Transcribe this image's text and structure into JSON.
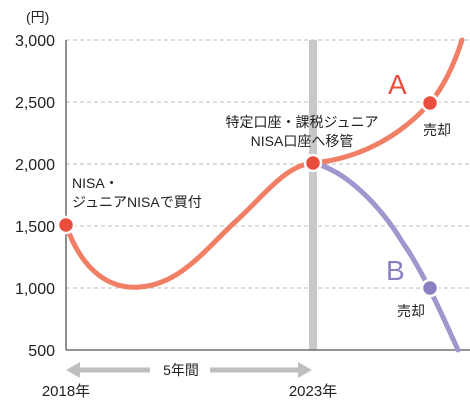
{
  "chart_data": {
    "type": "line",
    "unit_label": "(円)",
    "y_ticks": [
      "3,000",
      "2,500",
      "2,000",
      "1,500",
      "1,000",
      "500"
    ],
    "y_tick_values": [
      3000,
      2500,
      2000,
      1500,
      1000,
      500
    ],
    "ylim": [
      500,
      3000
    ],
    "x_labels": {
      "start": "2018年",
      "end": "2023年"
    },
    "duration_label": "5年間",
    "grid": true,
    "series": [
      {
        "name": "A",
        "color": "#f07f66",
        "sell_value": 2500
      },
      {
        "name": "B",
        "color": "#a196cd",
        "sell_value": 1000
      }
    ],
    "key_points": {
      "start_value": 1500,
      "transfer_value": 2000
    },
    "annotations": {
      "start": "NISA・ ジュニアNISAで買付",
      "transfer_line1": "特定口座・課税ジュニア",
      "transfer_line2": "NISA口座へ移管",
      "sell_a": "売却",
      "sell_b": "売却"
    },
    "colors": {
      "line_a": "#f07f66",
      "line_b": "#a196cd",
      "marker_a": "#e94e3c",
      "marker_b": "#8a7fc0",
      "divider": "#c8c8c8",
      "grid": "#bdbdbd",
      "axis": "#555555",
      "arrow": "#bfbfbf"
    }
  }
}
